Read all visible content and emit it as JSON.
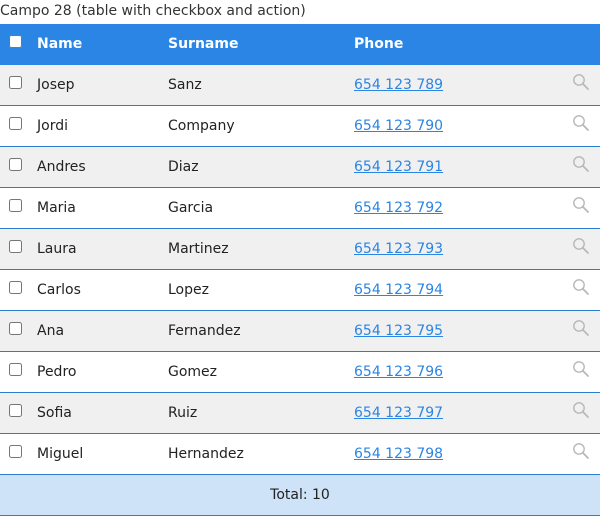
{
  "field_title": "Campo 28 (table with checkbox and action)",
  "columns": {
    "name": "Name",
    "surname": "Surname",
    "phone": "Phone"
  },
  "rows": [
    {
      "name": "Josep",
      "surname": "Sanz",
      "phone": "654 123 789",
      "checked": false
    },
    {
      "name": "Jordi",
      "surname": "Company",
      "phone": "654 123 790",
      "checked": false
    },
    {
      "name": "Andres",
      "surname": "Diaz",
      "phone": "654 123 791",
      "checked": false
    },
    {
      "name": "Maria",
      "surname": "Garcia",
      "phone": "654 123 792",
      "checked": false
    },
    {
      "name": "Laura",
      "surname": "Martinez",
      "phone": "654 123 793",
      "checked": false
    },
    {
      "name": "Carlos",
      "surname": "Lopez",
      "phone": "654 123 794",
      "checked": false
    },
    {
      "name": "Ana",
      "surname": "Fernandez",
      "phone": "654 123 795",
      "checked": false
    },
    {
      "name": "Pedro",
      "surname": "Gomez",
      "phone": "654 123 796",
      "checked": false
    },
    {
      "name": "Sofia",
      "surname": "Ruiz",
      "phone": "654 123 797",
      "checked": false
    },
    {
      "name": "Miguel",
      "surname": "Hernandez",
      "phone": "654 123 798",
      "checked": false
    }
  ],
  "footer": {
    "total": "Total: 10"
  },
  "colors": {
    "header_bg": "#2a85e4",
    "row_alt_bg": "#f0f0f0",
    "row_border": "#2c7fcf",
    "link": "#2a85e4",
    "footer_bg": "#cfe3f8"
  },
  "icons": {
    "row_action": "search-icon"
  }
}
